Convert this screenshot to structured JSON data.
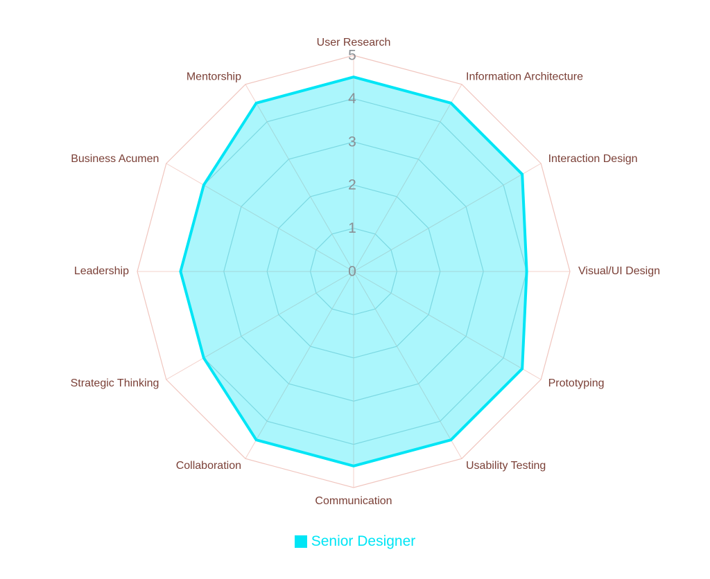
{
  "chart_data": {
    "type": "radar",
    "title": "",
    "categories": [
      "User Research",
      "Information Architecture",
      "Interaction Design",
      "Visual/UI Design",
      "Prototyping",
      "Usability Testing",
      "Communication",
      "Collaboration",
      "Strategic Thinking",
      "Leadership",
      "Business Acumen",
      "Mentorship"
    ],
    "r_ticks": [
      "0",
      "1",
      "2",
      "3",
      "4",
      "5"
    ],
    "rlim": [
      0,
      5
    ],
    "legend_position": "bottom",
    "series": [
      {
        "name": "Senior Designer",
        "values": [
          4.5,
          4.5,
          4.5,
          4,
          4.5,
          4.5,
          4.5,
          4.5,
          4,
          4,
          4,
          4.5
        ],
        "color": "#00e5f5",
        "fill": "rgba(0, 229, 245, 0.33)"
      }
    ]
  },
  "colors": {
    "outer_grid": "#f0c5be",
    "inner_grid": "#b8d3d8",
    "axis_label": "#7a3f36",
    "tick_label": "#8a8f94"
  }
}
